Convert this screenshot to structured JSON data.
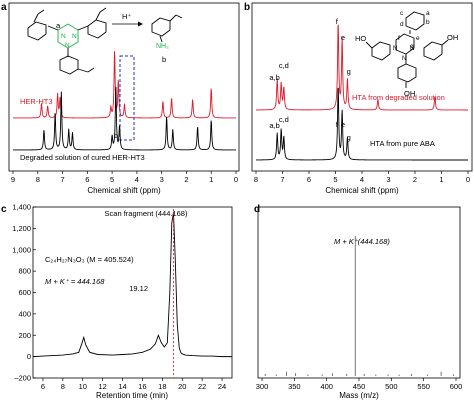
{
  "chart_data": [
    {
      "panel": "a",
      "type": "line",
      "xlabel": "Chemical shift (ppm)",
      "ylabel": "",
      "xlim": [
        9,
        0
      ],
      "x_ticks": [
        9,
        8,
        7,
        6,
        5,
        4,
        3,
        2,
        1,
        0
      ],
      "series": [
        {
          "name": "HER-HT3",
          "color": "#e0192b",
          "peaks": [
            [
              7.85,
              0.22
            ],
            [
              7.6,
              0.18
            ],
            [
              7.2,
              0.35
            ],
            [
              7.1,
              0.3
            ],
            [
              5.05,
              0.15
            ],
            [
              4.9,
              1.0
            ],
            [
              4.75,
              0.55
            ],
            [
              4.5,
              0.2
            ],
            [
              2.95,
              0.25
            ],
            [
              2.6,
              0.3
            ],
            [
              1.75,
              0.28
            ],
            [
              1.0,
              0.45
            ]
          ]
        },
        {
          "name": "Degraded solution of cured HER-HT3",
          "color": "#000000",
          "peaks": [
            [
              7.75,
              0.3
            ],
            [
              7.3,
              0.55
            ],
            [
              7.05,
              0.85
            ],
            [
              6.75,
              0.3
            ],
            [
              6.6,
              0.25
            ],
            [
              5.0,
              0.2
            ],
            [
              4.85,
              0.95
            ],
            [
              4.7,
              0.35
            ],
            [
              2.8,
              0.5
            ],
            [
              2.55,
              0.3
            ],
            [
              1.55,
              0.35
            ],
            [
              1.0,
              0.45
            ]
          ]
        }
      ],
      "annotations": {
        "structure_label": "a",
        "product_label": "b",
        "reagent": "H⁺",
        "product_group": "NH₂",
        "peak_marker": "b"
      }
    },
    {
      "panel": "b",
      "type": "line",
      "xlabel": "Chemical shift (ppm)",
      "ylabel": "",
      "xlim": [
        8,
        0
      ],
      "x_ticks": [
        8,
        7,
        6,
        5,
        4,
        3,
        2,
        1,
        0
      ],
      "series": [
        {
          "name": "HTA from degraded solution",
          "color": "#e0192b",
          "peaks": [
            [
              7.2,
              0.35
            ],
            [
              7.05,
              0.3
            ],
            [
              6.95,
              0.25
            ],
            [
              4.9,
              1.0
            ],
            [
              4.75,
              0.8
            ],
            [
              4.55,
              0.35
            ],
            [
              3.4,
              0.12
            ],
            [
              1.25,
              0.15
            ]
          ]
        },
        {
          "name": "HTA from pure ABA",
          "color": "#000000",
          "peaks": [
            [
              7.2,
              0.35
            ],
            [
              7.05,
              0.4
            ],
            [
              6.95,
              0.3
            ],
            [
              4.9,
              1.0
            ],
            [
              4.75,
              0.65
            ],
            [
              4.55,
              0.3
            ]
          ]
        }
      ],
      "peak_labels": [
        "a,b",
        "c,d",
        "f",
        "e",
        "g",
        "a,b",
        "c,d",
        "f",
        "e",
        "g"
      ],
      "structure_labels": [
        "a",
        "b",
        "c",
        "d",
        "e",
        "f",
        "g",
        "HO",
        "OH",
        "OH",
        "N",
        "N",
        "N"
      ]
    },
    {
      "panel": "c",
      "type": "line",
      "xlabel": "Retention time (min)",
      "ylabel": "",
      "xlim": [
        5,
        25
      ],
      "ylim": [
        -200,
        1400
      ],
      "x_ticks": [
        6,
        8,
        10,
        12,
        14,
        16,
        18,
        20,
        22,
        24
      ],
      "y_ticks": [
        -200,
        0,
        200,
        400,
        600,
        800,
        1000,
        1200,
        1400
      ],
      "y_tick_labels": [
        "–200",
        "0",
        "200",
        "400",
        "600",
        "800",
        "1,000",
        "1,200",
        "1,400"
      ],
      "series": [
        {
          "name": "",
          "color": "#000000",
          "x": [
            5.0,
            6.0,
            7.0,
            8.0,
            9.0,
            9.6,
            9.9,
            10.1,
            10.3,
            10.7,
            11.5,
            13.0,
            14.0,
            15.0,
            16.0,
            16.8,
            17.3,
            17.6,
            17.9,
            18.2,
            18.5,
            18.75,
            18.95,
            19.12,
            19.3,
            19.5,
            19.7,
            19.9,
            20.3,
            21.0,
            22.0,
            23.0,
            24.0,
            25.0
          ],
          "y": [
            0,
            5,
            10,
            15,
            25,
            40,
            120,
            180,
            110,
            40,
            20,
            15,
            20,
            25,
            40,
            70,
            120,
            200,
            130,
            90,
            130,
            600,
            1250,
            1350,
            900,
            300,
            80,
            30,
            15,
            10,
            5,
            5,
            0,
            0
          ]
        }
      ],
      "annotations": {
        "scan_label": "Scan fragment (444.168)",
        "peak_time": "19.12",
        "formula": "C₂₄H₂₇N₃O₃ (M = 405.524)",
        "ion": "M + K⁺ = 444.168",
        "ref_line_x": 19.12
      }
    },
    {
      "panel": "d",
      "type": "bar",
      "xlabel": "Mass (m/z)",
      "ylabel": "",
      "xlim": [
        300,
        600
      ],
      "x_ticks": [
        300,
        350,
        400,
        450,
        500,
        550,
        600
      ],
      "x": [
        305,
        322,
        338,
        352,
        371,
        393,
        409,
        431,
        444.168,
        458,
        476,
        495,
        512,
        531,
        556,
        577,
        596
      ],
      "values": [
        0.015,
        0.01,
        0.03,
        0.02,
        0.012,
        0.01,
        0.02,
        0.015,
        1.0,
        0.015,
        0.01,
        0.012,
        0.01,
        0.015,
        0.01,
        0.03,
        0.012
      ],
      "annotations": {
        "peak_label": "M + K⁺(444.168)"
      }
    }
  ]
}
